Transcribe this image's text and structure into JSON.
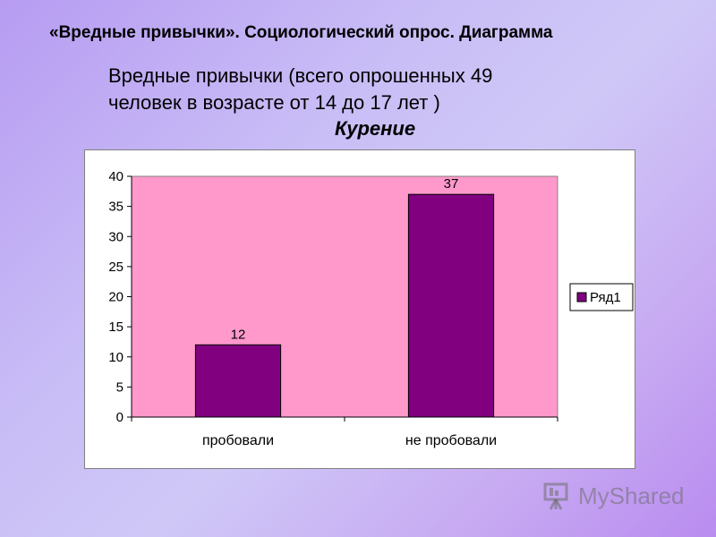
{
  "header": {
    "slide_title": "«Вредные привычки». Социологический опрос. Диаграмма",
    "subtitle_line1": "Вредные привычки (всего опрошенных 49",
    "subtitle_line2": "человек в возрасте от 14 до 17 лет )"
  },
  "colors": {
    "plot_background": "#ff99cc",
    "bar_fill": "#800080",
    "chart_area": "#ffffff"
  },
  "chart_data": {
    "type": "bar",
    "title": "Курение",
    "categories": [
      "пробовали",
      "не пробовали"
    ],
    "series": [
      {
        "name": "Ряд1",
        "values": [
          12,
          37
        ]
      }
    ],
    "ylim": [
      0,
      40
    ],
    "yticks": [
      "0",
      "5",
      "10",
      "15",
      "20",
      "25",
      "30",
      "35",
      "40"
    ],
    "data_labels": [
      "12",
      "37"
    ],
    "grid": false,
    "legend_position": "right"
  },
  "watermark": {
    "text": "MyShared",
    "icon": "presentation-board-icon"
  }
}
